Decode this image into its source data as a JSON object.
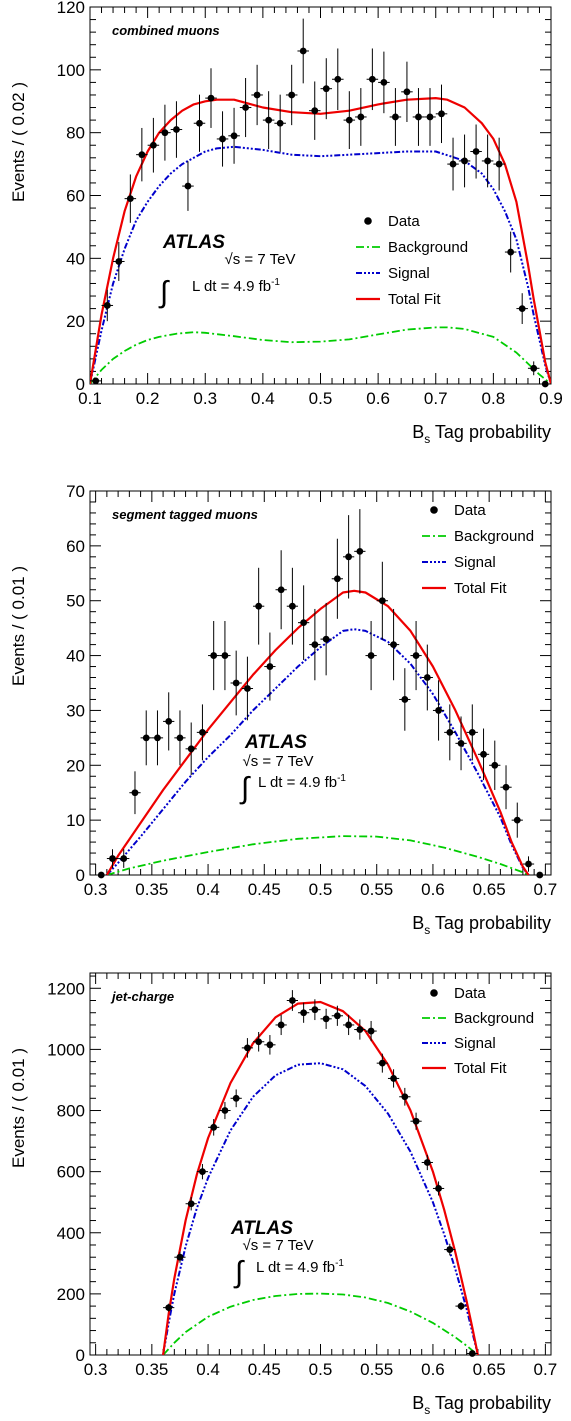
{
  "figure": {
    "xlabel_main": "B",
    "xlabel_sub": "s",
    "xlabel_rest": " Tag probability",
    "atlas": "ATLAS",
    "sqrt_s": "√s = 7 TeV",
    "lumi_text": "L dt = 4.9 fb",
    "lumi_sup": "-1",
    "integral": "∫"
  },
  "colors": {
    "data": "#000000",
    "background": "#00cc00",
    "signal": "#0000cc",
    "total": "#ee0000"
  },
  "chart_data": [
    {
      "type": "scatter",
      "panel_label": "combined muons",
      "ylabel": "Events / ( 0.02 )",
      "xlim": [
        0.1,
        0.9
      ],
      "ylim": [
        0,
        120
      ],
      "xticks": [
        "0.1",
        "0.2",
        "0.3",
        "0.4",
        "0.5",
        "0.6",
        "0.7",
        "0.8",
        "0.9"
      ],
      "yticks": [
        "0",
        "20",
        "40",
        "60",
        "80",
        "100",
        "120"
      ],
      "legend": [
        "Data",
        "Background",
        "Signal",
        "Total Fit"
      ],
      "data": {
        "x": [
          0.11,
          0.13,
          0.15,
          0.17,
          0.19,
          0.21,
          0.23,
          0.25,
          0.27,
          0.29,
          0.31,
          0.33,
          0.35,
          0.37,
          0.39,
          0.41,
          0.43,
          0.45,
          0.47,
          0.49,
          0.51,
          0.53,
          0.55,
          0.57,
          0.59,
          0.61,
          0.63,
          0.65,
          0.67,
          0.69,
          0.71,
          0.73,
          0.75,
          0.77,
          0.79,
          0.81,
          0.83,
          0.85,
          0.87,
          0.89
        ],
        "y": [
          1,
          25,
          39,
          59,
          73,
          76,
          80,
          81,
          63,
          83,
          91,
          78,
          79,
          88,
          92,
          84,
          83,
          92,
          106,
          87,
          94,
          97,
          84,
          85,
          97,
          96,
          85,
          93,
          85,
          85,
          86,
          70,
          71,
          74,
          71,
          70,
          42,
          24,
          5,
          0
        ],
        "yerr": [
          1,
          5,
          6.2,
          7.7,
          8.5,
          8.7,
          8.9,
          9,
          7.9,
          9.1,
          9.5,
          8.8,
          8.9,
          9.4,
          9.6,
          9.2,
          9.1,
          9.6,
          10.3,
          9.3,
          9.7,
          9.8,
          9.2,
          9.2,
          9.8,
          9.8,
          9.2,
          9.6,
          9.2,
          9.2,
          9.3,
          8.4,
          8.4,
          8.6,
          8.4,
          8.4,
          6.5,
          4.9,
          2.2,
          0
        ]
      },
      "total_fit": {
        "x": [
          0.1,
          0.12,
          0.14,
          0.16,
          0.18,
          0.2,
          0.22,
          0.24,
          0.26,
          0.28,
          0.3,
          0.32,
          0.35,
          0.4,
          0.45,
          0.5,
          0.55,
          0.6,
          0.65,
          0.7,
          0.72,
          0.75,
          0.78,
          0.8,
          0.82,
          0.84,
          0.86,
          0.87,
          0.88,
          0.89,
          0.9
        ],
        "y": [
          0,
          22,
          40,
          55,
          66,
          74,
          80,
          84,
          87,
          89,
          90,
          90.5,
          90.5,
          88,
          86.5,
          86,
          87,
          89,
          90.5,
          91,
          90.5,
          88,
          83,
          78,
          70,
          58,
          38,
          27,
          17,
          7,
          0
        ]
      },
      "signal": {
        "x": [
          0.1,
          0.12,
          0.14,
          0.16,
          0.18,
          0.2,
          0.22,
          0.24,
          0.26,
          0.28,
          0.3,
          0.32,
          0.35,
          0.4,
          0.45,
          0.5,
          0.55,
          0.6,
          0.65,
          0.7,
          0.75,
          0.78,
          0.8,
          0.82,
          0.84,
          0.86,
          0.87,
          0.88,
          0.89,
          0.9
        ],
        "y": [
          0,
          17,
          32,
          43,
          52,
          58,
          63,
          67,
          70,
          72,
          74,
          75,
          75.5,
          74.5,
          73,
          72.5,
          73,
          73.5,
          74,
          74,
          71,
          67,
          62,
          55,
          46,
          31,
          22,
          14,
          6,
          0
        ]
      },
      "background": {
        "x": [
          0.1,
          0.12,
          0.14,
          0.16,
          0.18,
          0.2,
          0.22,
          0.25,
          0.28,
          0.3,
          0.35,
          0.4,
          0.45,
          0.5,
          0.55,
          0.6,
          0.65,
          0.7,
          0.72,
          0.75,
          0.8,
          0.84,
          0.86,
          0.88,
          0.9
        ],
        "y": [
          0,
          4.5,
          8,
          10.5,
          12.5,
          14,
          15,
          16,
          16.5,
          16.3,
          15.2,
          14,
          13.3,
          13.5,
          14.2,
          15.8,
          17.3,
          18,
          18,
          17.5,
          15,
          10,
          6.5,
          3,
          0
        ]
      }
    },
    {
      "type": "scatter",
      "panel_label": "segment tagged muons",
      "ylabel": "Events / ( 0.01 )",
      "xlim": [
        0.295,
        0.705
      ],
      "ylim": [
        0,
        70
      ],
      "xticks": [
        "0.3",
        "0.35",
        "0.4",
        "0.45",
        "0.5",
        "0.55",
        "0.6",
        "0.65",
        "0.7"
      ],
      "yticks": [
        "0",
        "10",
        "20",
        "30",
        "40",
        "50",
        "60",
        "70"
      ],
      "legend": [
        "Data",
        "Background",
        "Signal",
        "Total Fit"
      ],
      "data": {
        "x": [
          0.305,
          0.315,
          0.325,
          0.335,
          0.345,
          0.355,
          0.365,
          0.375,
          0.385,
          0.395,
          0.405,
          0.415,
          0.425,
          0.435,
          0.445,
          0.455,
          0.465,
          0.475,
          0.485,
          0.495,
          0.505,
          0.515,
          0.525,
          0.535,
          0.545,
          0.555,
          0.565,
          0.575,
          0.585,
          0.595,
          0.605,
          0.615,
          0.625,
          0.635,
          0.645,
          0.655,
          0.665,
          0.675,
          0.685,
          0.695
        ],
        "y": [
          0,
          3,
          3,
          15,
          25,
          25,
          28,
          25,
          23,
          26,
          40,
          40,
          35,
          34,
          49,
          38,
          52,
          49,
          46,
          42,
          43,
          54,
          58,
          59,
          40,
          50,
          42,
          32,
          40,
          36,
          30,
          26,
          24,
          26,
          22,
          20,
          16,
          10,
          2,
          0
        ],
        "yerr": [
          0,
          1.7,
          1.7,
          3.9,
          5,
          5,
          5.3,
          5,
          4.8,
          5.1,
          6.3,
          6.3,
          5.9,
          5.8,
          7,
          6.2,
          7.2,
          7,
          6.8,
          6.5,
          6.6,
          7.3,
          7.6,
          7.7,
          6.3,
          7.1,
          6.5,
          5.7,
          6.3,
          6,
          5.5,
          5.1,
          4.9,
          5.1,
          4.7,
          4.5,
          4,
          3.2,
          1.4,
          0
        ]
      },
      "total_fit": {
        "x": [
          0.31,
          0.32,
          0.34,
          0.36,
          0.38,
          0.4,
          0.42,
          0.44,
          0.46,
          0.48,
          0.5,
          0.52,
          0.53,
          0.54,
          0.56,
          0.58,
          0.6,
          0.62,
          0.64,
          0.66,
          0.67,
          0.68,
          0.685
        ],
        "y": [
          0,
          3.5,
          9.5,
          15.5,
          21,
          26.5,
          31.5,
          36.5,
          41,
          45,
          48.5,
          51.5,
          51.8,
          51.5,
          49,
          44.5,
          38,
          30,
          21,
          11.5,
          6,
          1.5,
          0
        ]
      },
      "signal": {
        "x": [
          0.31,
          0.32,
          0.34,
          0.36,
          0.38,
          0.4,
          0.42,
          0.44,
          0.46,
          0.48,
          0.5,
          0.52,
          0.53,
          0.54,
          0.56,
          0.58,
          0.6,
          0.62,
          0.64,
          0.66,
          0.67,
          0.68,
          0.685
        ],
        "y": [
          0,
          2.2,
          7,
          12,
          17,
          21.5,
          25.5,
          30,
          34,
          38,
          41.5,
          44.5,
          44.8,
          44.5,
          42.5,
          38.5,
          33,
          26,
          18.5,
          10.5,
          5.5,
          1.3,
          0
        ]
      },
      "background": {
        "x": [
          0.31,
          0.33,
          0.36,
          0.4,
          0.44,
          0.48,
          0.52,
          0.55,
          0.58,
          0.61,
          0.64,
          0.66,
          0.68,
          0.685
        ],
        "y": [
          0,
          1.2,
          2.6,
          4.2,
          5.6,
          6.6,
          7.1,
          7,
          6.3,
          5,
          3.3,
          2,
          0.5,
          0
        ]
      }
    },
    {
      "type": "scatter",
      "panel_label": "jet-charge",
      "ylabel": "Events / ( 0.01 )",
      "xlim": [
        0.295,
        0.705
      ],
      "ylim": [
        0,
        1250
      ],
      "xticks": [
        "0.3",
        "0.35",
        "0.4",
        "0.45",
        "0.5",
        "0.55",
        "0.6",
        "0.65",
        "0.7"
      ],
      "yticks": [
        "0",
        "200",
        "400",
        "600",
        "800",
        "1000",
        "1200"
      ],
      "legend": [
        "Data",
        "Background",
        "Signal",
        "Total Fit"
      ],
      "data": {
        "x": [
          0.365,
          0.375,
          0.385,
          0.395,
          0.405,
          0.415,
          0.425,
          0.435,
          0.445,
          0.455,
          0.465,
          0.475,
          0.485,
          0.495,
          0.505,
          0.515,
          0.525,
          0.535,
          0.545,
          0.555,
          0.565,
          0.575,
          0.585,
          0.595,
          0.605,
          0.615,
          0.625,
          0.635
        ],
        "y": [
          155,
          320,
          495,
          600,
          745,
          800,
          840,
          1005,
          1025,
          1015,
          1080,
          1160,
          1120,
          1130,
          1100,
          1110,
          1080,
          1065,
          1060,
          955,
          905,
          845,
          765,
          630,
          545,
          345,
          160,
          5
        ],
        "yerr": [
          13,
          18,
          22,
          25,
          27,
          28,
          29,
          32,
          32,
          32,
          33,
          34,
          33,
          34,
          33,
          33,
          33,
          33,
          33,
          31,
          30,
          29,
          28,
          25,
          23,
          19,
          13,
          2
        ]
      },
      "total_fit": {
        "x": [
          0.36,
          0.365,
          0.37,
          0.38,
          0.39,
          0.4,
          0.42,
          0.44,
          0.46,
          0.48,
          0.5,
          0.52,
          0.54,
          0.56,
          0.58,
          0.6,
          0.61,
          0.62,
          0.63,
          0.635,
          0.64
        ],
        "y": [
          0,
          135,
          250,
          440,
          590,
          710,
          890,
          1020,
          1105,
          1150,
          1155,
          1125,
          1060,
          950,
          800,
          600,
          475,
          335,
          175,
          90,
          0
        ]
      },
      "signal": {
        "x": [
          0.36,
          0.365,
          0.37,
          0.38,
          0.39,
          0.4,
          0.42,
          0.44,
          0.46,
          0.48,
          0.5,
          0.52,
          0.54,
          0.56,
          0.58,
          0.6,
          0.61,
          0.62,
          0.63,
          0.635,
          0.64
        ],
        "y": [
          0,
          105,
          200,
          355,
          480,
          580,
          735,
          845,
          915,
          950,
          955,
          935,
          880,
          790,
          665,
          500,
          395,
          280,
          150,
          75,
          0
        ]
      },
      "background": {
        "x": [
          0.36,
          0.37,
          0.38,
          0.4,
          0.42,
          0.44,
          0.46,
          0.48,
          0.5,
          0.52,
          0.54,
          0.56,
          0.58,
          0.6,
          0.62,
          0.63,
          0.64
        ],
        "y": [
          0,
          40,
          75,
          125,
          158,
          180,
          193,
          200,
          201,
          198,
          188,
          170,
          142,
          105,
          58,
          30,
          0
        ]
      }
    }
  ]
}
